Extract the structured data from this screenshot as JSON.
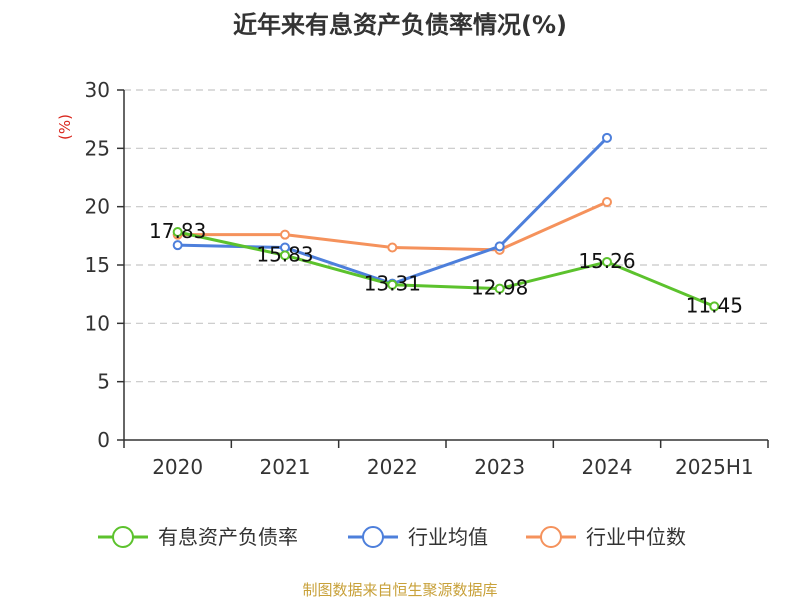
{
  "chart_data": {
    "type": "line",
    "title": "近年来有息资产负债率情况(%)",
    "ylabel": "(%)",
    "categories": [
      "2020",
      "2021",
      "2022",
      "2023",
      "2024",
      "2025H1"
    ],
    "ylim": [
      0,
      30
    ],
    "yticks": [
      0,
      5,
      10,
      15,
      20,
      25,
      30
    ],
    "grid": true,
    "legend_position": "bottom",
    "series": [
      {
        "name": "有息资产负债率",
        "color": "#5cc22d",
        "values": [
          17.83,
          15.83,
          13.31,
          12.98,
          15.26,
          11.45
        ],
        "labels": [
          "17.83",
          "15.83",
          "13.31",
          "12.98",
          "15.26",
          "11.45"
        ]
      },
      {
        "name": "行业均值",
        "color": "#4d7fdb",
        "values": [
          16.7,
          16.5,
          13.4,
          16.6,
          25.9,
          null
        ]
      },
      {
        "name": "行业中位数",
        "color": "#f5925c",
        "values": [
          17.6,
          17.6,
          16.5,
          16.3,
          20.4,
          null
        ]
      }
    ]
  },
  "source": "制图数据来自恒生聚源数据库"
}
